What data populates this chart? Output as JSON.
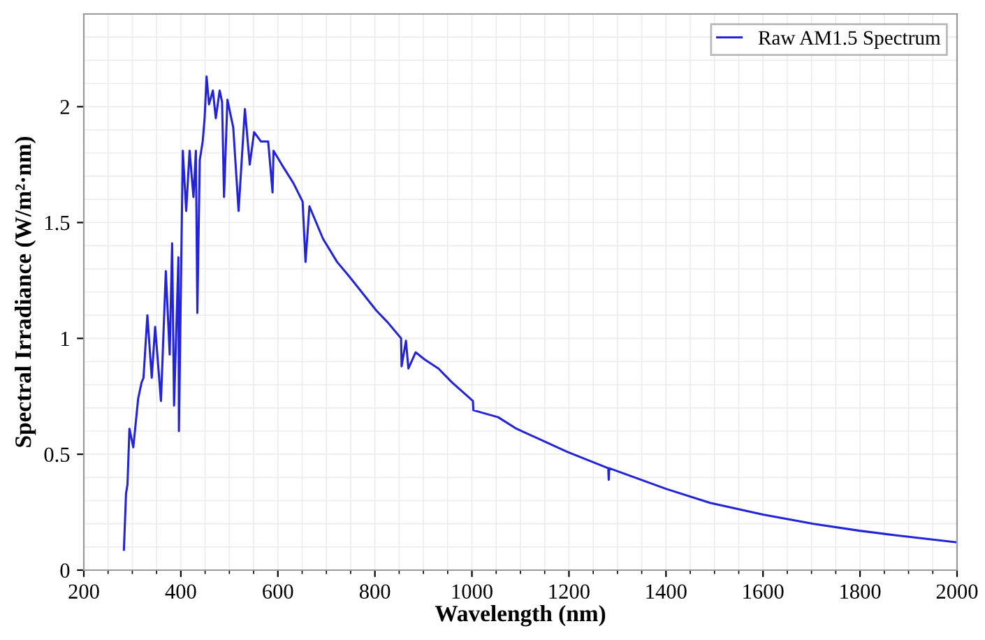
{
  "chart_data": {
    "type": "line",
    "xlabel": "Wavelength (nm)",
    "ylabel": "Spectral Irradiance (W/m²·nm)",
    "series": [
      {
        "name": "Raw AM1.5 Spectrum",
        "color": "#2323d8",
        "x": [
          282.6,
          287,
          290,
          294,
          302,
          312,
          319,
          323,
          331,
          340,
          347,
          359,
          369,
          377,
          382,
          386,
          395,
          396,
          404,
          411,
          418,
          426,
          431,
          434,
          439,
          445,
          449,
          453,
          458,
          466,
          472,
          480,
          485,
          489,
          496,
          508,
          519,
          532,
          542,
          551,
          565,
          580,
          589,
          591,
          608,
          632,
          651,
          657,
          665,
          693,
          722,
          746,
          769,
          803,
          826,
          854,
          855,
          864,
          869,
          884,
          902,
          931,
          959,
          1002,
          1003,
          1054,
          1092,
          1197,
          1281,
          1282,
          1283,
          1401,
          1491,
          1600,
          1704,
          1799,
          1875,
          1999
        ],
        "values": [
          0.088,
          0.33,
          0.37,
          0.61,
          0.53,
          0.74,
          0.81,
          0.83,
          1.1,
          0.83,
          1.05,
          0.73,
          1.29,
          0.93,
          1.41,
          0.71,
          1.35,
          0.6,
          1.81,
          1.55,
          1.81,
          1.61,
          1.81,
          1.11,
          1.77,
          1.85,
          1.95,
          2.13,
          2.01,
          2.07,
          1.95,
          2.07,
          2.02,
          1.61,
          2.03,
          1.91,
          1.55,
          1.99,
          1.75,
          1.89,
          1.85,
          1.85,
          1.63,
          1.81,
          1.75,
          1.67,
          1.59,
          1.33,
          1.57,
          1.43,
          1.33,
          1.27,
          1.21,
          1.12,
          1.07,
          1.0,
          0.88,
          0.99,
          0.87,
          0.94,
          0.91,
          0.87,
          0.81,
          0.73,
          0.69,
          0.66,
          0.61,
          0.51,
          0.44,
          0.39,
          0.44,
          0.35,
          0.29,
          0.24,
          0.2,
          0.17,
          0.15,
          0.12
        ]
      }
    ],
    "xlim": [
      200,
      2000
    ],
    "ylim": [
      0,
      2.4
    ],
    "xticks": [
      200,
      400,
      600,
      800,
      1000,
      1200,
      1400,
      1600,
      1800,
      2000
    ],
    "yticks": [
      0,
      0.5,
      1,
      1.5,
      2
    ],
    "grid": true,
    "legend": "top right",
    "marker": "none",
    "line_style": "solid"
  }
}
